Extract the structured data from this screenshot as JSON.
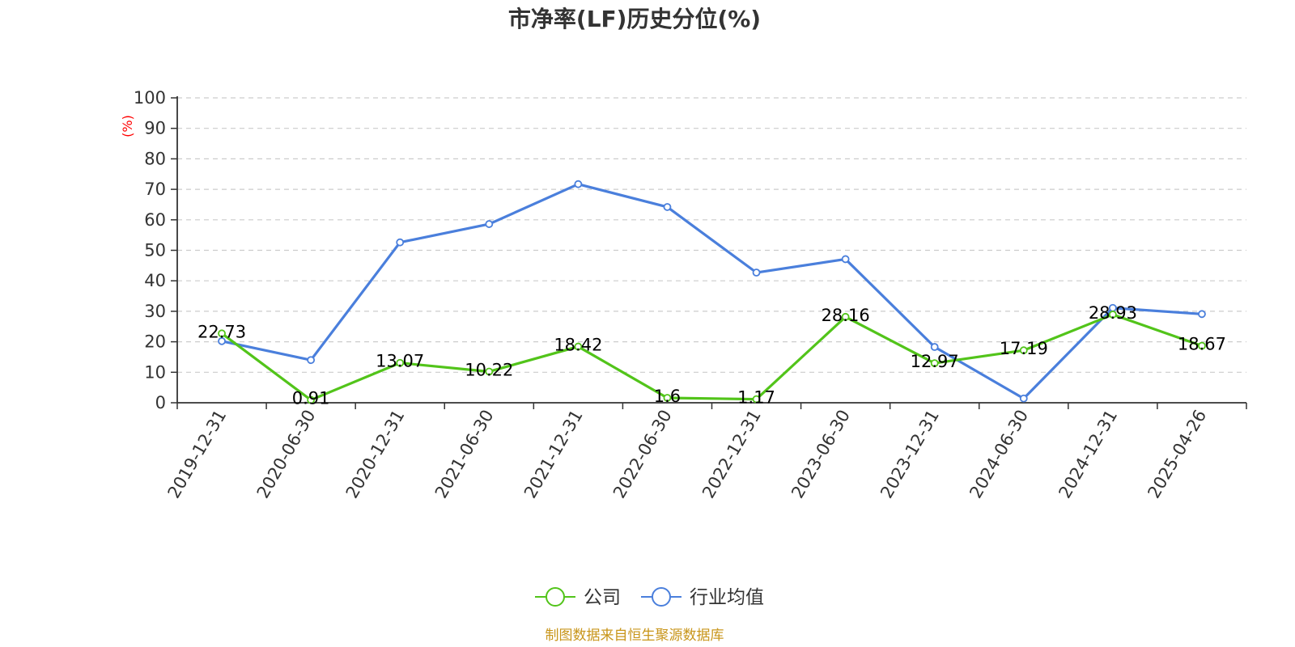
{
  "chart_data": {
    "type": "line",
    "title": "市净率(LF)历史分位(%)",
    "ylabel": "(%)",
    "ylim": [
      0,
      100
    ],
    "yticks": [
      0,
      10,
      20,
      30,
      40,
      50,
      60,
      70,
      80,
      90,
      100
    ],
    "grid": true,
    "legend_position": "bottom-center",
    "categories": [
      "2019-12-31",
      "2020-06-30",
      "2020-12-31",
      "2021-06-30",
      "2021-12-31",
      "2022-06-30",
      "2022-12-31",
      "2023-06-30",
      "2023-12-31",
      "2024-06-30",
      "2024-12-31",
      "2025-04-26"
    ],
    "series": [
      {
        "name": "公司",
        "color": "#52c41a",
        "values": [
          22.73,
          0.91,
          13.07,
          10.22,
          18.42,
          1.6,
          1.17,
          28.16,
          12.97,
          17.19,
          28.93,
          18.67
        ],
        "show_labels": true
      },
      {
        "name": "行业均值",
        "color": "#4a7fdc",
        "values": [
          20.2,
          14.0,
          52.6,
          58.6,
          71.7,
          64.2,
          42.7,
          47.1,
          18.3,
          1.4,
          31.1,
          29.1
        ],
        "show_labels": false
      }
    ]
  },
  "colors": {
    "unit_label": "#ff0000",
    "source": "#c8951a",
    "grid": "#cccccc",
    "axis": "#333333"
  },
  "footer": {
    "source": "制图数据来自恒生聚源数据库"
  }
}
